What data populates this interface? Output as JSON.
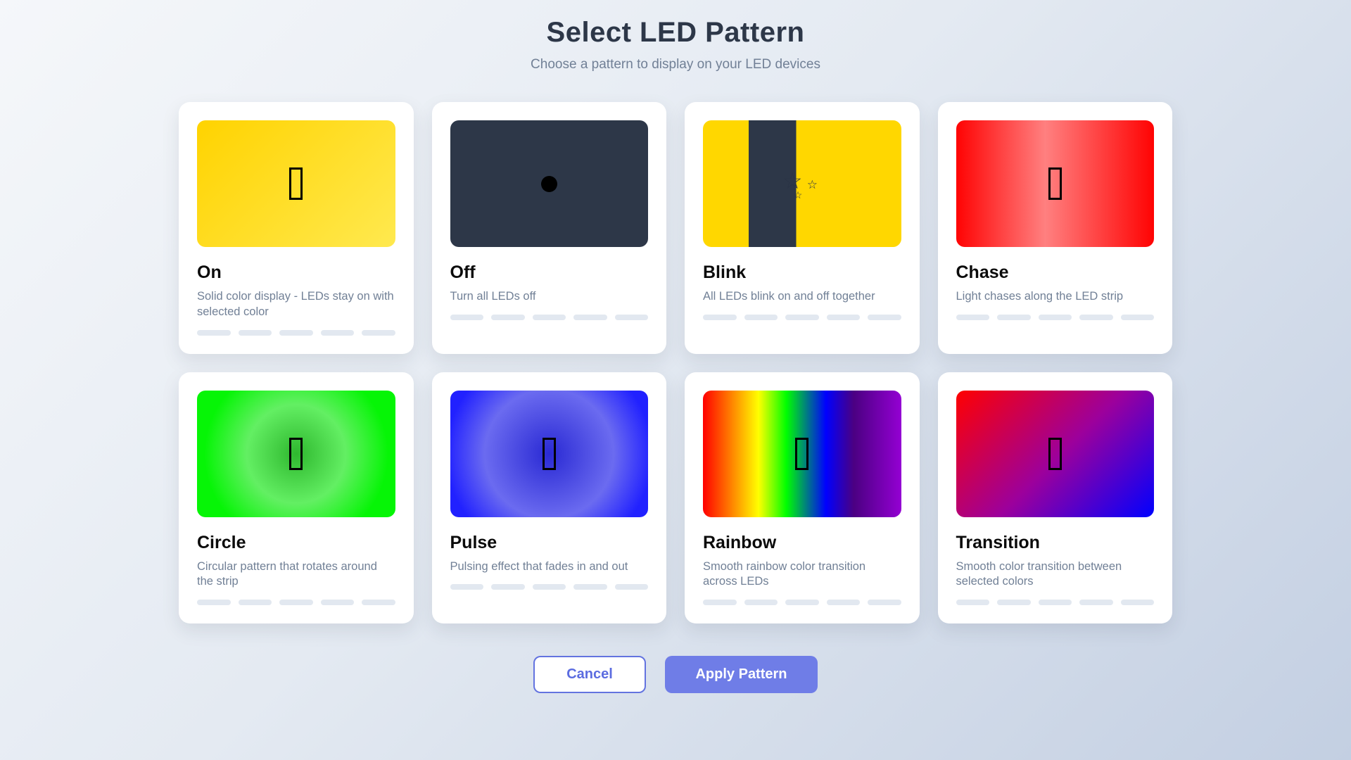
{
  "header": {
    "title": "Select LED Pattern",
    "subtitle": "Choose a pattern to display on your LED devices"
  },
  "patterns": [
    {
      "id": "on",
      "name": "On",
      "description": "Solid color display - LEDs stay on with selected color",
      "glyph": "missing-glyph",
      "preview": "yellow-gradient"
    },
    {
      "id": "off",
      "name": "Off",
      "description": "Turn all LEDs off",
      "glyph": "black-circle",
      "preview": "dark-slate"
    },
    {
      "id": "blink",
      "name": "Blink",
      "description": "All LEDs blink on and off together",
      "glyph": "sparkle-stars",
      "preview": "gold-with-dark-stripe"
    },
    {
      "id": "chase",
      "name": "Chase",
      "description": "Light chases along the LED strip",
      "glyph": "missing-glyph",
      "preview": "red-sheen-gradient"
    },
    {
      "id": "circle",
      "name": "Circle",
      "description": "Circular pattern that rotates around the strip",
      "glyph": "missing-glyph",
      "preview": "green-radial"
    },
    {
      "id": "pulse",
      "name": "Pulse",
      "description": "Pulsing effect that fades in and out",
      "glyph": "missing-glyph",
      "preview": "blue-radial"
    },
    {
      "id": "rainbow",
      "name": "Rainbow",
      "description": "Smooth rainbow color transition across LEDs",
      "glyph": "missing-glyph",
      "preview": "rainbow-gradient"
    },
    {
      "id": "transition",
      "name": "Transition",
      "description": "Smooth color transition between selected colors",
      "glyph": "missing-glyph",
      "preview": "red-to-blue-diagonal"
    }
  ],
  "led_segments_per_card": 5,
  "icons": {
    "star_char": "☆"
  },
  "footer": {
    "cancel_label": "Cancel",
    "apply_label": "Apply Pattern"
  },
  "colors": {
    "accent": "#6373e0",
    "apply_button_bg": "#6f7de7",
    "cancel_text": "#5b6ce0",
    "page_gradient_start": "#f5f7fa",
    "page_gradient_end": "#c3cfe2",
    "title_text": "#2d3748",
    "subtitle_text": "#718096",
    "card_bg": "#ffffff",
    "off_dark": "#2d3748",
    "gold": "#ffd700",
    "pill": "#e2e8f0"
  }
}
